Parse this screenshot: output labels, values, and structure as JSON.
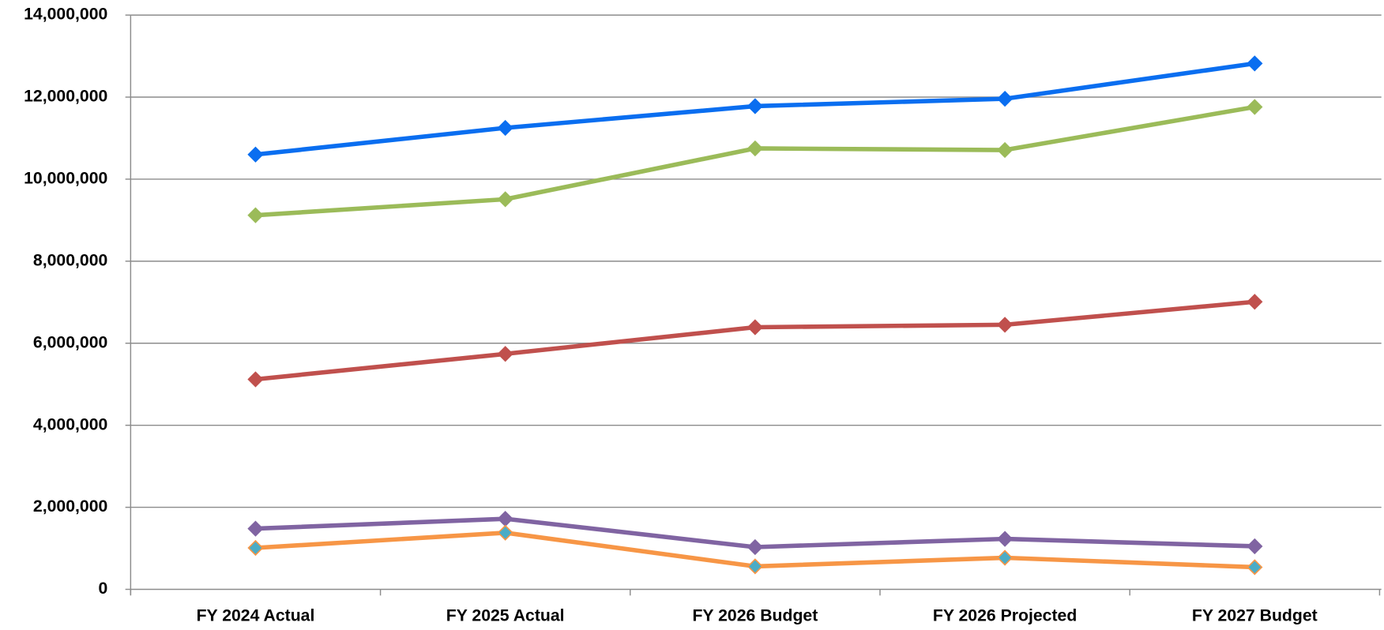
{
  "chart_data": {
    "type": "line",
    "categories": [
      "FY 2024 Actual",
      "FY 2025 Actual",
      "FY 2026 Budget",
      "FY 2026 Projected",
      "FY 2027 Budget"
    ],
    "series": [
      {
        "color": "#0a6ef0",
        "values": [
          10600000,
          11250000,
          11780000,
          11960000,
          12820000
        ]
      },
      {
        "color": "#9bbb59",
        "values": [
          9120000,
          9510000,
          10750000,
          10710000,
          11760000
        ]
      },
      {
        "color": "#c0504d",
        "values": [
          5120000,
          5740000,
          6390000,
          6450000,
          7010000
        ]
      },
      {
        "color": "#8064a2",
        "values": [
          1480000,
          1720000,
          1030000,
          1230000,
          1050000
        ]
      },
      {
        "color": "#f79646",
        "marker_color": "#4bacc6",
        "values": [
          1010000,
          1380000,
          560000,
          770000,
          540000
        ]
      }
    ],
    "ylim": [
      0,
      14000000
    ],
    "yticks": [
      0,
      {
        "value": 2000000,
        "label": "2,000,000"
      },
      {
        "value": 4000000,
        "label": "4,000,000"
      },
      {
        "value": 6000000,
        "label": "6,000,000"
      },
      {
        "value": 8000000,
        "label": "8,000,000"
      },
      {
        "value": 10000000,
        "label": "10,000,000"
      },
      {
        "value": 12000000,
        "label": "12,000,000"
      },
      {
        "value": 14000000,
        "label": "14,000,000"
      }
    ],
    "grid": true
  }
}
